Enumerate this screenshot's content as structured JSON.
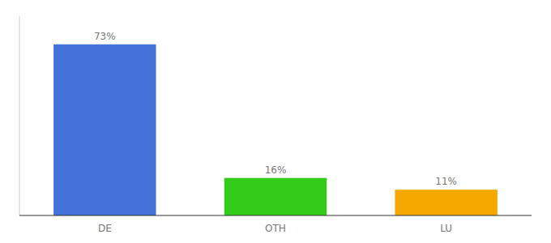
{
  "chart_data": {
    "type": "bar",
    "categories": [
      "DE",
      "OTH",
      "LU"
    ],
    "values": [
      73,
      16,
      11
    ],
    "value_labels": [
      "73%",
      "16%",
      "11%"
    ],
    "colors": [
      "#4472db",
      "#33cc1a",
      "#f5a800"
    ],
    "ylim": [
      0,
      85
    ],
    "data_labels": true,
    "tick_labels": "x"
  }
}
